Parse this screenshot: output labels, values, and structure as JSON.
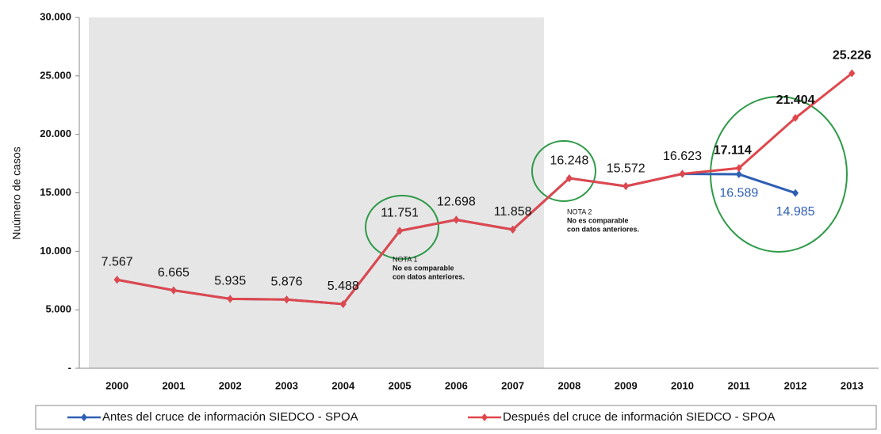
{
  "chart_data": {
    "type": "line",
    "ylabel": "Nuúmero de casos",
    "categories": [
      "2000",
      "2001",
      "2002",
      "2003",
      "2004",
      "2005",
      "2006",
      "2007",
      "2008",
      "2009",
      "2010",
      "2011",
      "2012",
      "2013"
    ],
    "ylim": [
      0,
      30000
    ],
    "yticks": [
      {
        "value": 0,
        "label": "-"
      },
      {
        "value": 5000,
        "label": "5.000"
      },
      {
        "value": 10000,
        "label": "10.000"
      },
      {
        "value": 15000,
        "label": "15.000"
      },
      {
        "value": 20000,
        "label": "20.000"
      },
      {
        "value": 25000,
        "label": "25.000"
      },
      {
        "value": 30000,
        "label": "30.000"
      }
    ],
    "series": [
      {
        "name": "Antes del cruce de información SIEDCO - SPOA",
        "color": "#2f5fb3",
        "values": [
          7567,
          6665,
          5935,
          5876,
          5488,
          11751,
          12698,
          11858,
          16248,
          15572,
          16623,
          16589,
          14985,
          null
        ],
        "value_labels": [
          null,
          null,
          null,
          null,
          null,
          null,
          null,
          null,
          null,
          null,
          null,
          "16.589",
          "14.985",
          null
        ]
      },
      {
        "name": "Después del cruce de información SIEDCO - SPOA",
        "color": "#e0474c",
        "values": [
          7567,
          6665,
          5935,
          5876,
          5488,
          11751,
          12698,
          11858,
          16248,
          15572,
          16623,
          17114,
          21404,
          25226
        ],
        "value_labels": [
          "7.567",
          "6.665",
          "5.935",
          "5.876",
          "5.488",
          "11.751",
          "12.698",
          "11.858",
          "16.248",
          "15.572",
          "16.623",
          "17.114",
          "21.404",
          "25.226"
        ]
      }
    ],
    "annotations": [
      {
        "title": "NOTA 1",
        "lines": [
          "No es comparable",
          "con datos anteriores."
        ]
      },
      {
        "title": "NOTA 2",
        "lines": [
          "No es comparable",
          "con datos anteriores."
        ]
      }
    ],
    "legend": "bottom"
  }
}
